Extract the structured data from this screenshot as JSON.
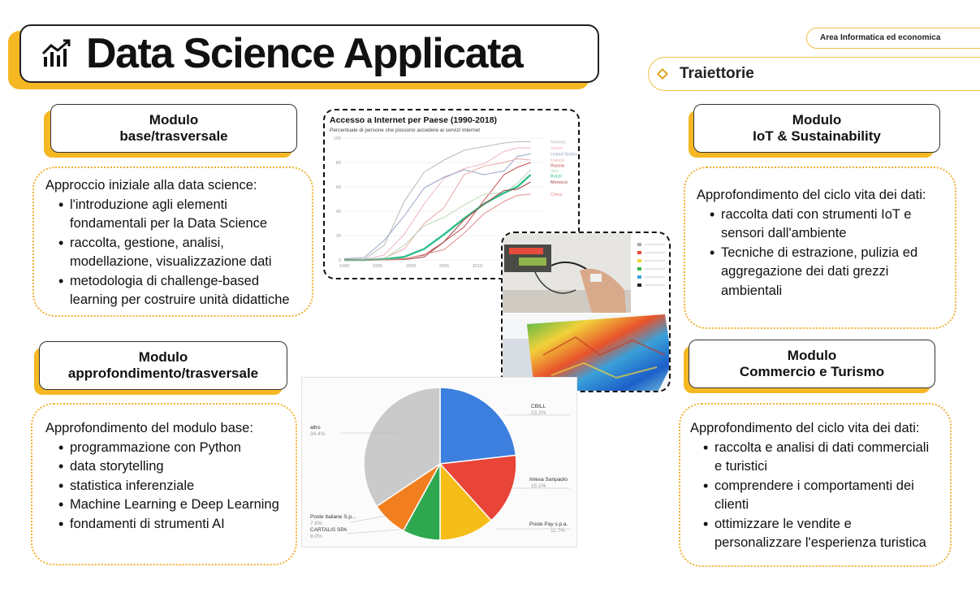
{
  "header": {
    "title": "Data Science Applicata",
    "area_tag": "Area Informatica ed economica",
    "trajectories_label": "Traiettorie"
  },
  "modules": {
    "base": {
      "title_line1": "Modulo",
      "title_line2": "base/trasversale",
      "lead": "Approccio iniziale alla data science:",
      "items": [
        [
          "l'introduzione agli elementi",
          "fondamentali per la Data Science"
        ],
        [
          "raccolta, gestione, analisi,",
          "modellazione, visualizzazione dati"
        ],
        [
          "metodologia di challenge-based",
          "learning per costruire unità didattiche"
        ]
      ]
    },
    "deep": {
      "title_line1": "Modulo",
      "title_line2": "approfondimento/trasversale",
      "lead": "Approfondimento del modulo base:",
      "items": [
        [
          "programmazione con Python"
        ],
        [
          "data storytelling"
        ],
        [
          "statistica inferenziale"
        ],
        [
          "Machine Learning e Deep Learning"
        ],
        [
          "fondamenti di strumenti AI"
        ]
      ]
    },
    "iot": {
      "title_line1": "Modulo",
      "title_line2": "IoT & Sustainability",
      "lead": "Approfondimento del ciclo vita dei dati:",
      "items": [
        [
          "raccolta dati con strumenti IoT e",
          "sensori  dall'ambiente"
        ],
        [
          "Tecniche di estrazione, pulizia ed",
          "aggregazione dei dati grezzi",
          "ambientali"
        ]
      ]
    },
    "commerce": {
      "title_line1": "Modulo",
      "title_line2": "Commercio e Turismo",
      "lead": "Approfondimento del ciclo vita dei dati:",
      "items": [
        [
          "raccolta e analisi di dati commerciali",
          "e turistici"
        ],
        [
          "comprendere i comportamenti dei",
          "clienti"
        ],
        [
          "ottimizzare le vendite e",
          "personalizzare l'esperienza turistica"
        ]
      ]
    }
  },
  "chart_data": [
    {
      "type": "line",
      "title": "Accesso a Internet per Paese (1990-2018)",
      "subtitle": "Percentuale di persone che possono accedere ai servizi Internet",
      "x_ticks": [
        "1990",
        "1995",
        "2000",
        "2005",
        "2010"
      ],
      "y_ticks": [
        "0",
        "20",
        "40",
        "60",
        "80",
        "100"
      ],
      "ylim": [
        0,
        100
      ],
      "x": [
        1990,
        1993,
        1996,
        1999,
        2002,
        2005,
        2008,
        2011,
        2014,
        2016,
        2018
      ],
      "series": [
        {
          "name": "Norway",
          "color": "#b9b9b9",
          "values": [
            0,
            0.5,
            12,
            48,
            72,
            82,
            90,
            93,
            96,
            97,
            97
          ]
        },
        {
          "name": "Japan",
          "color": "#f0b5c4",
          "values": [
            0,
            0.3,
            4,
            21,
            46,
            67,
            75,
            79,
            89,
            92,
            92
          ]
        },
        {
          "name": "United States",
          "color": "#9aa5c9",
          "values": [
            1,
            2,
            16,
            36,
            59,
            68,
            74,
            70,
            73,
            85,
            87
          ]
        },
        {
          "name": "France",
          "color": "#e7a9a9",
          "values": [
            0,
            0.2,
            1.5,
            9,
            30,
            43,
            70,
            77,
            80,
            83,
            82
          ]
        },
        {
          "name": "Russia",
          "color": "#c44b4b",
          "values": [
            0,
            0,
            0.1,
            1,
            4,
            15,
            27,
            49,
            70,
            76,
            80
          ]
        },
        {
          "name": "Italy",
          "color": "#bcd9b3",
          "values": [
            0,
            0.1,
            1,
            12,
            28,
            35,
            45,
            54,
            55,
            63,
            74
          ]
        },
        {
          "name": "Brazil",
          "color": "#2fbf8b",
          "values": [
            0,
            0,
            0.5,
            2.5,
            9,
            21,
            34,
            46,
            55,
            60,
            70
          ]
        },
        {
          "name": "Morocco",
          "color": "#a34040",
          "values": [
            0,
            0,
            0,
            0.3,
            2.4,
            15,
            33,
            46,
            57,
            58,
            64
          ]
        },
        {
          "name": "China",
          "color": "#e08a8a",
          "values": [
            0,
            0,
            0,
            0.7,
            4.6,
            8.5,
            22,
            38,
            48,
            53,
            54
          ]
        }
      ]
    },
    {
      "type": "pie",
      "slices": [
        {
          "label": "CBILL",
          "pct_label": "23.2%",
          "value": 23.2,
          "color": "#3c7fde"
        },
        {
          "label": "Intesa Sanpaolo",
          "pct_label": "15.1%",
          "value": 15.1,
          "color": "#e84438"
        },
        {
          "label": "Poste Pay s.p.a.",
          "pct_label": "11.7%",
          "value": 11.7,
          "color": "#f5bd18"
        },
        {
          "label": "CARTALIS SPA",
          "pct_label": "8.0%",
          "value": 8.0,
          "color": "#2ea84f"
        },
        {
          "label": "Poste Italiane S.p...",
          "pct_label": "7.6%",
          "value": 7.6,
          "color": "#f27f1f"
        },
        {
          "label": "altro",
          "pct_label": "34.4%",
          "value": 34.4,
          "color": "#cacaca"
        }
      ]
    }
  ]
}
